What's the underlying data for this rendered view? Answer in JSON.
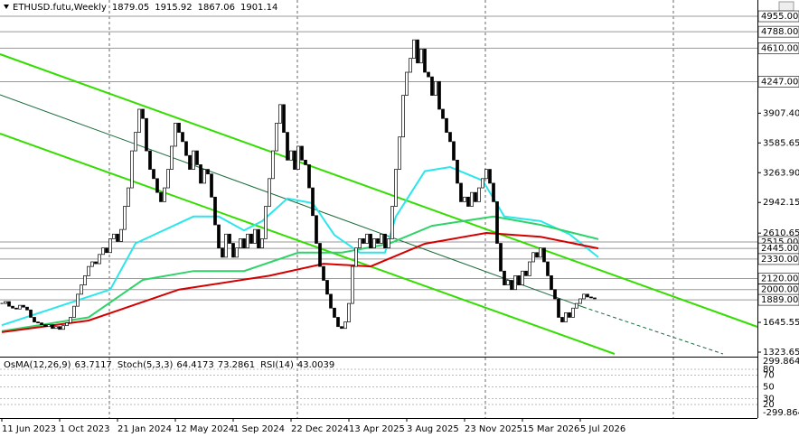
{
  "chart_data": {
    "type": "candlestick",
    "header": {
      "symbol": "ETHUSD.futu,Weekly",
      "ohlc": [
        1879.05,
        1915.92,
        1867.06,
        1901.14
      ]
    },
    "up_color": "#ffffff",
    "down_color": "#000000",
    "close": [
      1850,
      1870,
      1820,
      1800,
      1790,
      1830,
      1810,
      1780,
      1700,
      1650,
      1640,
      1620,
      1600,
      1620,
      1580,
      1600,
      1570,
      1610,
      1640,
      1700,
      1820,
      1950,
      2050,
      2150,
      2250,
      2300,
      2280,
      2380,
      2450,
      2400,
      2550,
      2600,
      2520,
      2650,
      2900,
      3100,
      3500,
      3700,
      3950,
      3850,
      3500,
      3300,
      3200,
      3050,
      2950,
      3100,
      3300,
      3550,
      3800,
      3700,
      3600,
      3450,
      3300,
      3500,
      3350,
      3150,
      3300,
      3250,
      3000,
      2700,
      2450,
      2350,
      2600,
      2500,
      2350,
      2450,
      2550,
      2450,
      2600,
      2500,
      2650,
      2450,
      2550,
      2900,
      3200,
      3500,
      3800,
      4000,
      3700,
      3400,
      3500,
      3300,
      3550,
      3400,
      3350,
      3100,
      2800,
      2500,
      2250,
      2100,
      1950,
      1800,
      1700,
      1600,
      1580,
      1650,
      1850,
      2250,
      2450,
      2550,
      2500,
      2600,
      2450,
      2550,
      2500,
      2600,
      2450,
      2550,
      2900,
      3300,
      3650,
      4100,
      4350,
      4500,
      4700,
      4450,
      4600,
      4350,
      4300,
      4100,
      4250,
      3950,
      3850,
      3700,
      3600,
      3400,
      3150,
      2950,
      3000,
      2900,
      3050,
      2950,
      3100,
      3200,
      3300,
      3150,
      2950,
      2500,
      2200,
      2050,
      2100,
      2000,
      2150,
      2050,
      2200,
      2150,
      2300,
      2400,
      2350,
      2450,
      2300,
      2150,
      2000,
      1900,
      1700,
      1650,
      1750,
      1700,
      1800,
      1850,
      1900,
      1950,
      1920,
      1910,
      1901.14
    ],
    "xlim": [
      -0.5,
      209
    ],
    "ylim": [
      1275,
      5131
    ],
    "xticks": [
      {
        "value": 0,
        "label": "11 Jun 2023"
      },
      {
        "value": 16,
        "label": "1 Oct 2023"
      },
      {
        "value": 32,
        "label": "21 Jan 2024"
      },
      {
        "value": 48,
        "label": "12 May 2024"
      },
      {
        "value": 64,
        "label": "1 Sep 2024"
      },
      {
        "value": 80,
        "label": "22 Dec 2024"
      },
      {
        "value": 96,
        "label": "13 Apr 2025"
      },
      {
        "value": 112,
        "label": "3 Aug 2025"
      },
      {
        "value": 128,
        "label": "23 Nov 2025"
      },
      {
        "value": 144,
        "label": "15 Mar 2026"
      },
      {
        "value": 160,
        "label": "5 Jul 2026"
      }
    ],
    "yticks": [
      {
        "value": 3907.4,
        "label": "3907.40"
      },
      {
        "value": 3585.65,
        "label": "3585.65"
      },
      {
        "value": 3263.9,
        "label": "3263.90"
      },
      {
        "value": 2942.15,
        "label": "2942.15"
      },
      {
        "value": 2610.65,
        "label": "2610.65"
      },
      {
        "value": 1645.55,
        "label": "1645.55"
      },
      {
        "value": 1323.65,
        "label": "1323.65"
      }
    ],
    "levels": [
      {
        "value": 4955,
        "label": "4955.00"
      },
      {
        "value": 4788,
        "label": "4788.00"
      },
      {
        "value": 4610,
        "label": "4610.00"
      },
      {
        "value": 4247,
        "label": "4247.00"
      },
      {
        "value": 2515,
        "label": "2515.00"
      },
      {
        "value": 2445,
        "label": "2445.00"
      },
      {
        "value": 2330,
        "label": "2330.00"
      },
      {
        "value": 2120,
        "label": "2120.00"
      },
      {
        "value": 2000,
        "label": "2000.00"
      },
      {
        "value": 1889,
        "label": "1889.00"
      }
    ],
    "series": [
      {
        "color": "#2be6ea",
        "x": [
          0,
          30,
          37,
          53,
          60,
          67,
          72,
          79,
          86,
          92,
          99,
          106,
          109,
          117,
          124,
          133,
          139,
          149,
          157,
          165
        ],
        "values": [
          1615,
          2000,
          2500,
          2790,
          2790,
          2640,
          2740,
          2985,
          2935,
          2590,
          2400,
          2400,
          2790,
          3280,
          3325,
          3180,
          2790,
          2740,
          2600,
          2350
        ]
      },
      {
        "color": "#2fd36a",
        "x": [
          0,
          24,
          39,
          53,
          67,
          82,
          94,
          107,
          119,
          136,
          149,
          165
        ],
        "values": [
          1550,
          1700,
          2105,
          2200,
          2200,
          2400,
          2400,
          2495,
          2690,
          2790,
          2700,
          2545
        ]
      },
      {
        "color": "#d40000",
        "x": [
          0,
          24,
          49,
          74,
          89,
          102,
          117,
          134,
          149,
          165
        ],
        "values": [
          1540,
          1665,
          2000,
          2150,
          2280,
          2250,
          2495,
          2612,
          2570,
          2445
        ]
      }
    ],
    "trendlines": [
      {
        "color": "#33dd00",
        "x": [
          -0.5,
          209
        ],
        "values": [
          4545,
          1597
        ]
      },
      {
        "color": "#33dd00",
        "x": [
          -0.5,
          169.5
        ],
        "values": [
          3686,
          1304
        ]
      },
      {
        "color": "#1a6b3a",
        "x": [
          -0.5,
          160.75
        ],
        "values": [
          4106,
          1812
        ]
      },
      {
        "color": "#1a6b3a",
        "dashed": true,
        "x": [
          160.75,
          199.5
        ],
        "values": [
          1812,
          1304
        ]
      }
    ],
    "oscillator": {
      "indicators": [
        {
          "name": "OsMA(12,26,9)",
          "values": [
            63.7117
          ]
        },
        {
          "name": "Stoch(5,3,3)",
          "values": [
            64.4173,
            73.2861
          ]
        },
        {
          "name": "RSI(14)",
          "values": [
            43.0039
          ]
        }
      ],
      "ylim": [
        0,
        100
      ],
      "yticks": [
        20,
        30,
        50,
        70,
        80
      ],
      "osma_lim": [
        -299.8649,
        299.8649
      ]
    }
  }
}
